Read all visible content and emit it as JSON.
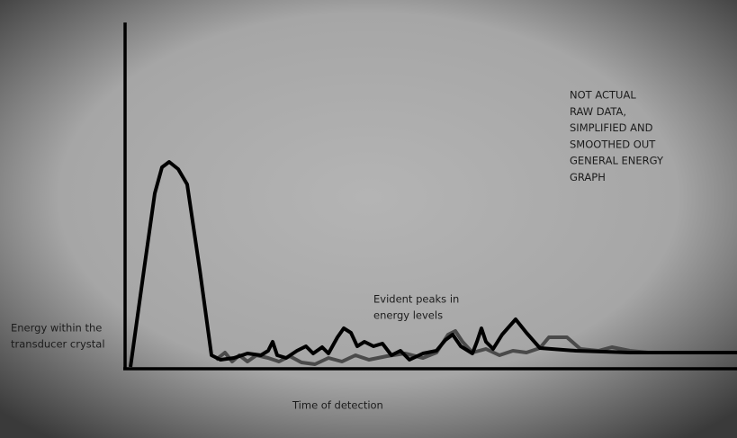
{
  "axis_labels": {
    "y": [
      "Energy within the",
      "transducer crystal"
    ],
    "x": "Time of detection"
  },
  "annotation": [
    "Evident peaks in",
    "energy levels"
  ],
  "note": [
    "NOT ACTUAL",
    "RAW DATA,",
    "SIMPLIFIED AND",
    "SMOOTHED OUT",
    "GENERAL ENERGY",
    "GRAPH"
  ]
}
